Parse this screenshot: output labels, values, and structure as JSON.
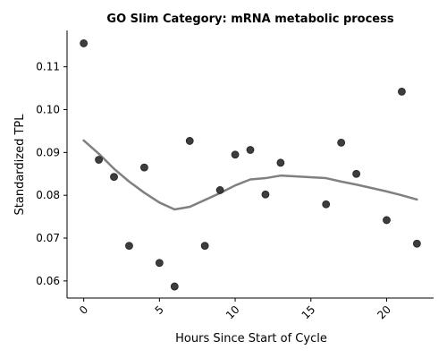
{
  "chart_data": {
    "type": "scatter",
    "title": "GO Slim Category: mRNA metabolic process",
    "xlabel": "Hours Since Start of Cycle",
    "ylabel": "Standardized TPL",
    "xlim": [
      -1.1,
      23.1
    ],
    "ylim": [
      0.056,
      0.1185
    ],
    "xticks": [
      0,
      5,
      10,
      15,
      20
    ],
    "xtick_labels": [
      "0",
      "5",
      "10",
      "15",
      "20"
    ],
    "xtick_rotation": 45,
    "yticks": [
      0.06,
      0.07,
      0.08,
      0.09,
      0.1,
      0.11
    ],
    "ytick_labels": [
      "0.06",
      "0.07",
      "0.08",
      "0.09",
      "0.10",
      "0.11"
    ],
    "grid": false,
    "spines": [
      "left",
      "bottom"
    ],
    "points": [
      {
        "x": 0,
        "y": 0.1155
      },
      {
        "x": 1,
        "y": 0.0883
      },
      {
        "x": 2,
        "y": 0.0843
      },
      {
        "x": 3,
        "y": 0.0682
      },
      {
        "x": 4,
        "y": 0.0865
      },
      {
        "x": 5,
        "y": 0.0642
      },
      {
        "x": 6,
        "y": 0.0587
      },
      {
        "x": 7,
        "y": 0.0927
      },
      {
        "x": 8,
        "y": 0.0682
      },
      {
        "x": 9,
        "y": 0.0812
      },
      {
        "x": 10,
        "y": 0.0895
      },
      {
        "x": 11,
        "y": 0.0906
      },
      {
        "x": 12,
        "y": 0.0802
      },
      {
        "x": 13,
        "y": 0.0876
      },
      {
        "x": 16,
        "y": 0.0779
      },
      {
        "x": 17,
        "y": 0.0923
      },
      {
        "x": 18,
        "y": 0.085
      },
      {
        "x": 20,
        "y": 0.0742
      },
      {
        "x": 21,
        "y": 0.1042
      },
      {
        "x": 22,
        "y": 0.0687
      }
    ],
    "trend": [
      {
        "x": 0,
        "y": 0.0928
      },
      {
        "x": 1,
        "y": 0.0897
      },
      {
        "x": 2,
        "y": 0.0862
      },
      {
        "x": 3,
        "y": 0.0832
      },
      {
        "x": 4,
        "y": 0.0806
      },
      {
        "x": 5,
        "y": 0.0783
      },
      {
        "x": 6,
        "y": 0.0767
      },
      {
        "x": 7,
        "y": 0.0773
      },
      {
        "x": 8,
        "y": 0.0789
      },
      {
        "x": 9,
        "y": 0.0805
      },
      {
        "x": 10,
        "y": 0.0823
      },
      {
        "x": 11,
        "y": 0.0837
      },
      {
        "x": 12,
        "y": 0.084
      },
      {
        "x": 13,
        "y": 0.0846
      },
      {
        "x": 16,
        "y": 0.084
      },
      {
        "x": 17,
        "y": 0.0832
      },
      {
        "x": 18,
        "y": 0.0825
      },
      {
        "x": 20,
        "y": 0.0809
      },
      {
        "x": 21,
        "y": 0.08
      },
      {
        "x": 22,
        "y": 0.079
      }
    ],
    "colors": {
      "points": "#333333",
      "trend": "#808080"
    }
  }
}
